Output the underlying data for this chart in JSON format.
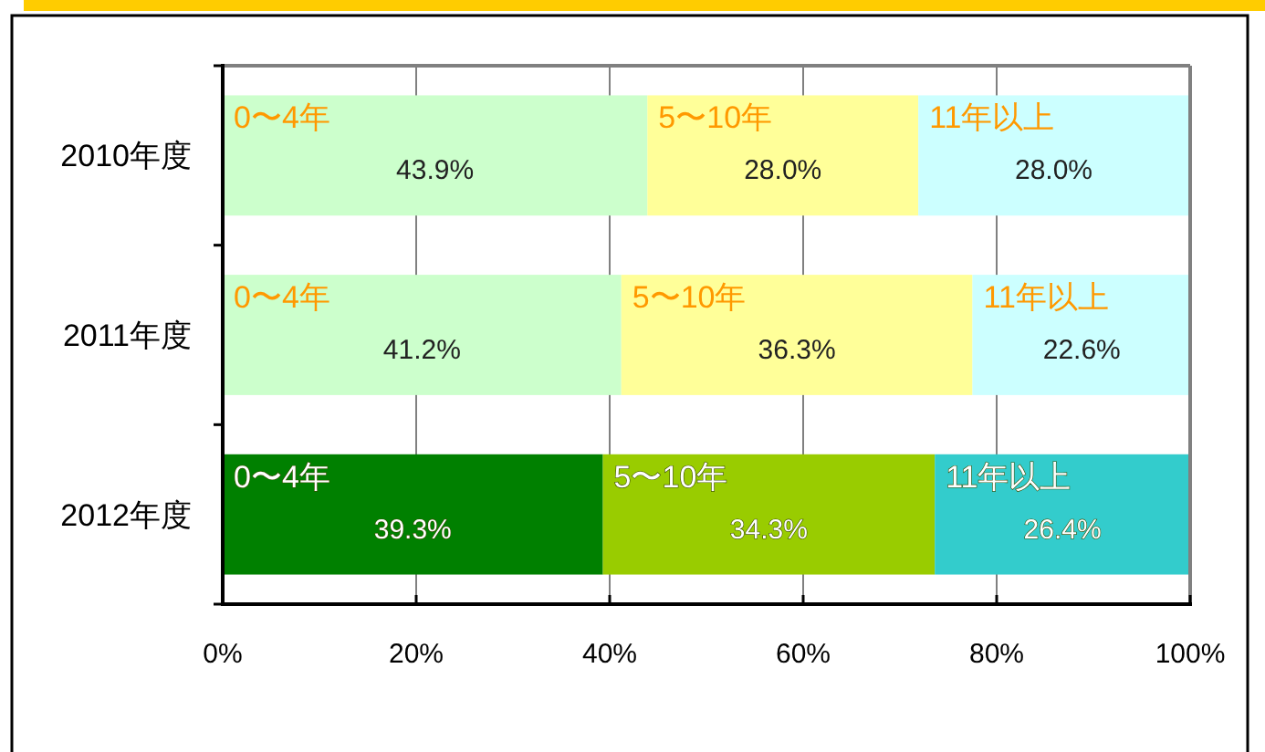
{
  "chart_data": {
    "type": "bar",
    "orientation": "horizontal",
    "stacked": true,
    "categories": [
      "2010年度",
      "2011年度",
      "2012年度"
    ],
    "series": [
      {
        "name": "0〜4年",
        "colors": [
          "#ccffcc",
          "#ccffcc",
          "#008000"
        ],
        "values": [
          43.9,
          41.2,
          39.3
        ],
        "value_labels": [
          "43.9%",
          "41.2%",
          "39.3%"
        ]
      },
      {
        "name": "5〜10年",
        "colors": [
          "#ffff99",
          "#ffff99",
          "#99cc00"
        ],
        "values": [
          28.0,
          36.3,
          34.3
        ],
        "value_labels": [
          "28.0%",
          "36.3%",
          "34.3%"
        ]
      },
      {
        "name": "11年以上",
        "colors": [
          "#ccffff",
          "#ccffff",
          "#33cccc"
        ],
        "values": [
          28.0,
          22.6,
          26.4
        ],
        "value_labels": [
          "28.0%",
          "22.6%",
          "26.4%"
        ]
      }
    ],
    "xlim": [
      0,
      100
    ],
    "xticks": [
      {
        "value": 0,
        "label": "0%"
      },
      {
        "value": 20,
        "label": "20%"
      },
      {
        "value": 40,
        "label": "40%"
      },
      {
        "value": 60,
        "label": "60%"
      },
      {
        "value": 80,
        "label": "80%"
      },
      {
        "value": 100,
        "label": "100%"
      }
    ],
    "grid": "x"
  }
}
